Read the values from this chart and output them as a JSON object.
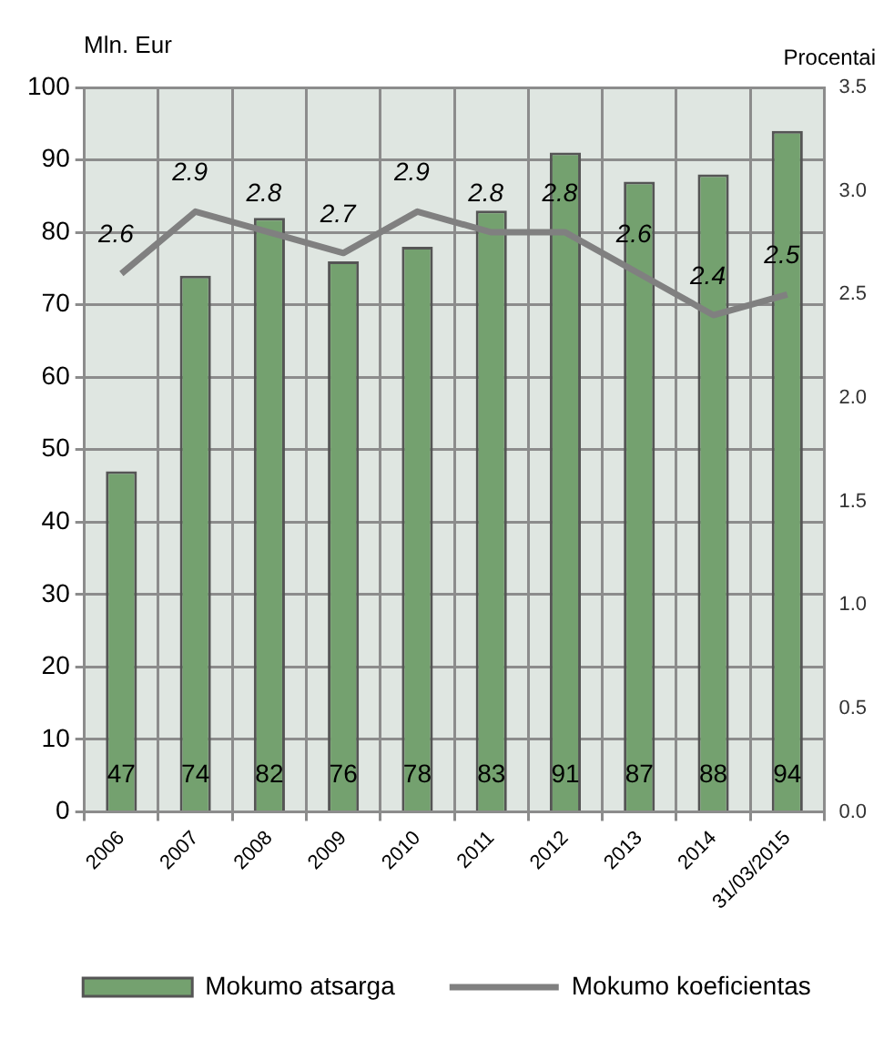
{
  "chart_data": {
    "type": "bar",
    "ylabel": "Mln. Eur",
    "y2label": "Procentai",
    "categories": [
      "2006",
      "2007",
      "2008",
      "2009",
      "2010",
      "2011",
      "2012",
      "2013",
      "2014",
      "31/03/2015"
    ],
    "series": [
      {
        "name": "Mokumo atsarga",
        "color": "#74a16f",
        "values": [
          47,
          74,
          82,
          76,
          78,
          83,
          91,
          87,
          88,
          94
        ]
      },
      {
        "name": "Mokumo koeficientas",
        "type": "line",
        "axis": "y2",
        "color": "#808080",
        "marker": "none",
        "values": [
          2.6,
          2.9,
          2.8,
          2.7,
          2.9,
          2.8,
          2.8,
          2.6,
          2.4,
          2.5
        ]
      }
    ],
    "ylim": [
      0,
      100
    ],
    "yticks": [
      0,
      10,
      20,
      30,
      40,
      50,
      60,
      70,
      80,
      90,
      100
    ],
    "y2lim": [
      0,
      3.5
    ],
    "y2ticks": [
      {
        "value": 0,
        "label": "0.0"
      },
      0.5,
      {
        "value": 1,
        "label": "1.0"
      },
      1.5,
      {
        "value": 2,
        "label": "2.0"
      },
      2.5,
      {
        "value": 3,
        "label": "3.0"
      },
      3.5
    ],
    "data_labels": true,
    "grid": true,
    "legend": "bottom"
  }
}
